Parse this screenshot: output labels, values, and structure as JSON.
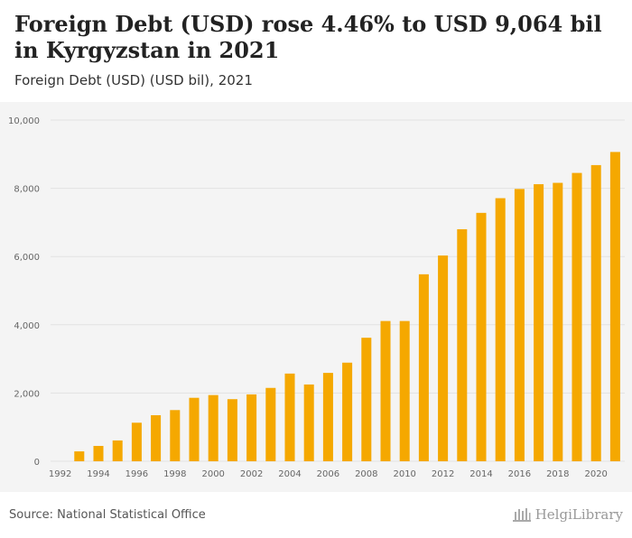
{
  "header": {
    "title": "Foreign Debt (USD) rose 4.46% to USD 9,064 bil in Kyrgyzstan in 2021",
    "subtitle": "Foreign Debt (USD) (USD bil), 2021"
  },
  "footer": {
    "source": "Source: National Statistical Office",
    "brand": "HelgiLibrary"
  },
  "colors": {
    "bar": "#f5a800",
    "plot_bg": "#f4f4f4",
    "grid": "#e2e2e2"
  },
  "chart_data": {
    "type": "bar",
    "title": "Foreign Debt (USD) rose 4.46% to USD 9,064 bil in Kyrgyzstan in 2021",
    "subtitle": "Foreign Debt (USD) (USD bil), 2021",
    "categories": [
      1992,
      1993,
      1994,
      1995,
      1996,
      1997,
      1998,
      1999,
      2000,
      2001,
      2002,
      2003,
      2004,
      2005,
      2006,
      2007,
      2008,
      2009,
      2010,
      2011,
      2012,
      2013,
      2014,
      2015,
      2016,
      2017,
      2018,
      2019,
      2020,
      2021
    ],
    "values": [
      null,
      290,
      450,
      610,
      1130,
      1350,
      1500,
      1860,
      1940,
      1820,
      1960,
      2150,
      2570,
      2250,
      2590,
      2890,
      3620,
      4110,
      4110,
      5480,
      6030,
      6800,
      7280,
      7710,
      7980,
      8120,
      8160,
      8450,
      8680,
      9064
    ],
    "x_tick_labels": [
      "1992",
      "1994",
      "1996",
      "1998",
      "2000",
      "2002",
      "2004",
      "2006",
      "2008",
      "2010",
      "2012",
      "2014",
      "2016",
      "2018",
      "2020"
    ],
    "y_ticks": [
      0,
      2000,
      4000,
      6000,
      8000,
      10000
    ],
    "y_tick_labels": [
      "0",
      "2,000",
      "4,000",
      "6,000",
      "8,000",
      "10,000"
    ],
    "ylim": [
      0,
      10000
    ],
    "grid": true,
    "legend": "none"
  }
}
